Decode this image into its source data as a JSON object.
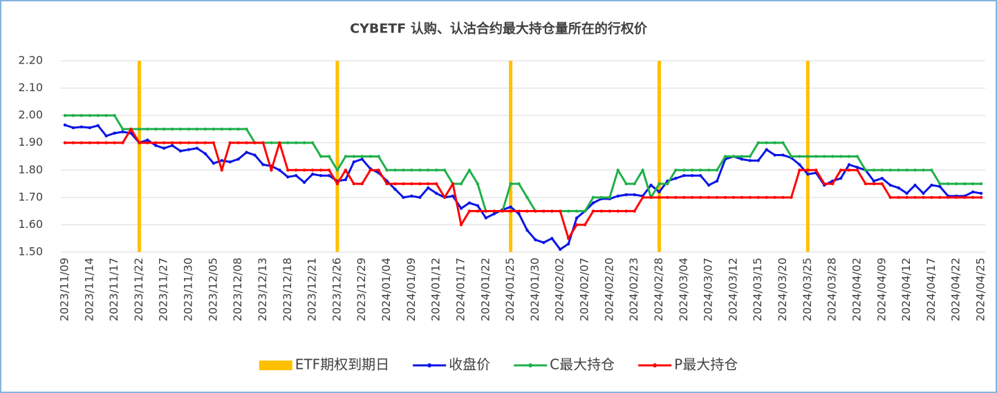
{
  "chart_data": {
    "type": "line",
    "title": "CYBETF 认购、认沽合约最大持仓量所在的行权价",
    "categories": [
      "2023/11/09",
      null,
      null,
      "2023/11/14",
      null,
      null,
      "2023/11/17",
      null,
      null,
      "2023/11/22",
      null,
      null,
      "2023/11/27",
      null,
      null,
      "2023/11/30",
      null,
      null,
      "2023/12/05",
      null,
      null,
      "2023/12/08",
      null,
      null,
      "2023/12/13",
      null,
      null,
      "2023/12/18",
      null,
      null,
      "2023/12/21",
      null,
      null,
      "2023/12/26",
      null,
      null,
      "2023/12/29",
      null,
      null,
      "2024/01/04",
      null,
      null,
      "2024/01/09",
      null,
      null,
      "2024/01/12",
      null,
      null,
      "2024/01/17",
      null,
      null,
      "2024/01/22",
      null,
      null,
      "2024/01/25",
      null,
      null,
      "2024/01/30",
      null,
      null,
      "2024/02/02",
      null,
      null,
      "2024/02/07",
      null,
      null,
      "2024/02/20",
      null,
      null,
      "2024/02/23",
      null,
      null,
      "2024/02/28",
      null,
      null,
      "2024/03/04",
      null,
      null,
      "2024/03/07",
      null,
      null,
      "2024/03/12",
      null,
      null,
      "2024/03/15",
      null,
      null,
      "2024/03/20",
      null,
      null,
      "2024/03/25",
      null,
      null,
      "2024/03/28",
      null,
      null,
      "2024/04/02",
      null,
      null,
      "2024/04/09",
      null,
      null,
      "2024/04/12",
      null,
      null,
      "2024/04/17",
      null,
      null,
      "2024/04/22",
      null,
      null,
      "2024/04/25"
    ],
    "series": [
      {
        "name": "ETF期权到期日",
        "type": "bar",
        "color": "#ffc000",
        "values": [
          null,
          null,
          null,
          null,
          null,
          null,
          null,
          null,
          null,
          2.2,
          null,
          null,
          null,
          null,
          null,
          null,
          null,
          null,
          null,
          null,
          null,
          null,
          null,
          null,
          null,
          null,
          null,
          null,
          null,
          null,
          null,
          null,
          null,
          2.2,
          null,
          null,
          null,
          null,
          null,
          null,
          null,
          null,
          null,
          null,
          null,
          null,
          null,
          null,
          null,
          null,
          null,
          null,
          null,
          null,
          2.2,
          null,
          null,
          null,
          null,
          null,
          null,
          null,
          null,
          null,
          null,
          null,
          null,
          null,
          null,
          null,
          null,
          null,
          2.2,
          null,
          null,
          null,
          null,
          null,
          null,
          null,
          null,
          null,
          null,
          null,
          null,
          null,
          null,
          null,
          null,
          null,
          2.2,
          null,
          null,
          null,
          null,
          null,
          null,
          null,
          null,
          null,
          null,
          null,
          null,
          null,
          null,
          null,
          null,
          null,
          null,
          null,
          null,
          null
        ]
      },
      {
        "name": "收盘价",
        "type": "line",
        "color": "#0a14e6",
        "values": [
          1.965,
          1.955,
          1.958,
          1.955,
          1.963,
          1.925,
          1.935,
          1.94,
          1.935,
          1.9,
          1.91,
          1.89,
          1.88,
          1.89,
          1.87,
          1.875,
          1.88,
          1.86,
          1.825,
          1.835,
          1.83,
          1.84,
          1.865,
          1.855,
          1.82,
          1.815,
          1.8,
          1.775,
          1.78,
          1.755,
          1.785,
          1.78,
          1.78,
          1.76,
          1.765,
          1.83,
          1.84,
          1.805,
          1.79,
          1.76,
          1.73,
          1.7,
          1.705,
          1.7,
          1.735,
          1.715,
          1.7,
          1.705,
          1.66,
          1.68,
          1.67,
          1.625,
          1.64,
          1.655,
          1.665,
          1.64,
          1.58,
          1.545,
          1.535,
          1.55,
          1.51,
          1.53,
          1.625,
          1.65,
          1.68,
          1.695,
          1.695,
          1.705,
          1.71,
          1.71,
          1.705,
          1.745,
          1.72,
          1.76,
          1.77,
          1.78,
          1.78,
          1.78,
          1.745,
          1.76,
          1.84,
          1.85,
          1.84,
          1.835,
          1.835,
          1.875,
          1.855,
          1.855,
          1.845,
          1.82,
          1.785,
          1.79,
          1.745,
          1.76,
          1.77,
          1.82,
          1.81,
          1.8,
          1.76,
          1.77,
          1.745,
          1.735,
          1.715,
          1.745,
          1.715,
          1.745,
          1.74,
          1.705,
          1.705,
          1.705,
          1.72,
          1.715
        ]
      },
      {
        "name": "C最大持仓",
        "type": "line",
        "color": "#1fb04a",
        "values": [
          2.0,
          2.0,
          2.0,
          2.0,
          2.0,
          2.0,
          2.0,
          1.95,
          1.95,
          1.95,
          1.95,
          1.95,
          1.95,
          1.95,
          1.95,
          1.95,
          1.95,
          1.95,
          1.95,
          1.95,
          1.95,
          1.95,
          1.95,
          1.9,
          1.9,
          1.9,
          1.9,
          1.9,
          1.9,
          1.9,
          1.9,
          1.85,
          1.85,
          1.8,
          1.85,
          1.85,
          1.85,
          1.85,
          1.85,
          1.8,
          1.8,
          1.8,
          1.8,
          1.8,
          1.8,
          1.8,
          1.8,
          1.75,
          1.75,
          1.8,
          1.75,
          1.65,
          1.65,
          1.65,
          1.75,
          1.75,
          1.7,
          1.65,
          1.65,
          1.65,
          1.65,
          1.65,
          1.65,
          1.65,
          1.7,
          1.7,
          1.7,
          1.8,
          1.75,
          1.75,
          1.8,
          1.7,
          1.75,
          1.75,
          1.8,
          1.8,
          1.8,
          1.8,
          1.8,
          1.8,
          1.85,
          1.85,
          1.85,
          1.85,
          1.9,
          1.9,
          1.9,
          1.9,
          1.85,
          1.85,
          1.85,
          1.85,
          1.85,
          1.85,
          1.85,
          1.85,
          1.85,
          1.8,
          1.8,
          1.8,
          1.8,
          1.8,
          1.8,
          1.8,
          1.8,
          1.8,
          1.75,
          1.75,
          1.75,
          1.75,
          1.75,
          1.75
        ]
      },
      {
        "name": "P最大持仓",
        "type": "line",
        "color": "#ff0000",
        "values": [
          1.9,
          1.9,
          1.9,
          1.9,
          1.9,
          1.9,
          1.9,
          1.9,
          1.95,
          1.9,
          1.9,
          1.9,
          1.9,
          1.9,
          1.9,
          1.9,
          1.9,
          1.9,
          1.9,
          1.8,
          1.9,
          1.9,
          1.9,
          1.9,
          1.9,
          1.8,
          1.9,
          1.8,
          1.8,
          1.8,
          1.8,
          1.8,
          1.8,
          1.75,
          1.8,
          1.75,
          1.75,
          1.8,
          1.8,
          1.75,
          1.75,
          1.75,
          1.75,
          1.75,
          1.75,
          1.75,
          1.7,
          1.75,
          1.6,
          1.65,
          1.65,
          1.65,
          1.65,
          1.65,
          1.65,
          1.65,
          1.65,
          1.65,
          1.65,
          1.65,
          1.65,
          1.55,
          1.6,
          1.6,
          1.65,
          1.65,
          1.65,
          1.65,
          1.65,
          1.65,
          1.7,
          1.7,
          1.7,
          1.7,
          1.7,
          1.7,
          1.7,
          1.7,
          1.7,
          1.7,
          1.7,
          1.7,
          1.7,
          1.7,
          1.7,
          1.7,
          1.7,
          1.7,
          1.7,
          1.8,
          1.8,
          1.8,
          1.75,
          1.75,
          1.8,
          1.8,
          1.8,
          1.75,
          1.75,
          1.75,
          1.7,
          1.7,
          1.7,
          1.7,
          1.7,
          1.7,
          1.7,
          1.7,
          1.7,
          1.7,
          1.7,
          1.7
        ]
      }
    ],
    "ylim": [
      1.5,
      2.2
    ],
    "yticks": [
      {
        "value": 1.5,
        "label": "1.50"
      },
      {
        "value": 1.6,
        "label": "1.60"
      },
      {
        "value": 1.7,
        "label": "1.70"
      },
      {
        "value": 1.8,
        "label": "1.80"
      },
      {
        "value": 1.9,
        "label": "1.90"
      },
      {
        "value": 2.0,
        "label": "2.00"
      },
      {
        "value": 2.1,
        "label": "2.10"
      },
      {
        "value": 2.2,
        "label": "2.20"
      }
    ],
    "grid": true,
    "legend": "bottom"
  }
}
